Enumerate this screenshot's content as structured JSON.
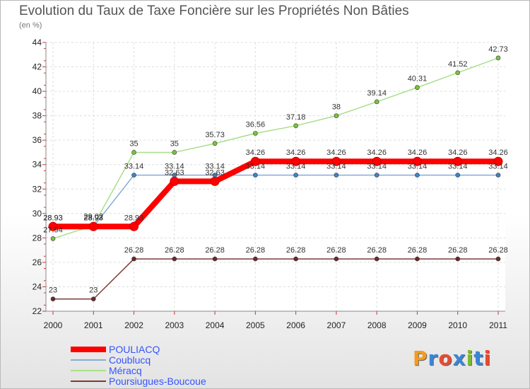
{
  "title": "Evolution du Taux de Taxe Foncière sur les Propriétés Non Bâties",
  "subtitle": "(en %)",
  "logo": "Proxiti",
  "colors": {
    "logo": [
      "#f39c1e",
      "#3a86d4",
      "#e84a2f",
      "#3a86d4",
      "#7dbb2e",
      "#3a86d4",
      "#e84a2f"
    ]
  },
  "chart_data": {
    "type": "line",
    "x": [
      "2000",
      "2001",
      "2002",
      "2003",
      "2004",
      "2005",
      "2006",
      "2007",
      "2008",
      "2009",
      "2010",
      "2011"
    ],
    "ylim": [
      22,
      44
    ],
    "yticks": [
      "22",
      "24",
      "26",
      "28",
      "30",
      "32",
      "34",
      "36",
      "38",
      "40",
      "42",
      "44"
    ],
    "grid": true,
    "legend": "bottom-left",
    "series": [
      {
        "name": "Poursiugues-Boucoue",
        "color": "#7a3b3b",
        "marker": "#6b2a2a",
        "values": [
          23,
          23,
          26.28,
          26.28,
          26.28,
          26.28,
          26.28,
          26.28,
          26.28,
          26.28,
          26.28,
          26.28
        ],
        "labels": [
          "23",
          "23",
          "26.28",
          "26.28",
          "26.28",
          "26.28",
          "26.28",
          "26.28",
          "26.28",
          "26.28",
          "26.28",
          "26.28"
        ]
      },
      {
        "name": "Méracq",
        "color": "#a9df8a",
        "marker": "#7cc43a",
        "values": [
          27.94,
          29.02,
          35,
          35,
          35.73,
          36.56,
          37.18,
          38,
          39.14,
          40.31,
          41.52,
          42.73
        ],
        "labels": [
          "27.94",
          "29.02",
          "35",
          "35",
          "35.73",
          "36.56",
          "37.18",
          "38",
          "39.14",
          "40.31",
          "41.52",
          "42.73"
        ]
      },
      {
        "name": "Coublucq",
        "color": "#86acd6",
        "marker": "#3b86c8",
        "values": [
          28.93,
          28.93,
          33.14,
          33.14,
          33.14,
          33.14,
          33.14,
          33.14,
          33.14,
          33.14,
          33.14,
          33.14
        ],
        "labels": [
          "28.93",
          "28.93",
          "33.14",
          "33.14",
          "33.14",
          "33.14",
          "33.14",
          "33.14",
          "33.14",
          "33.14",
          "33.14",
          "33.14"
        ]
      },
      {
        "name": "POULIACQ",
        "color": "#ff0000",
        "marker": "#ff0000",
        "values": [
          28.93,
          28.93,
          28.93,
          32.63,
          32.63,
          34.26,
          34.26,
          34.26,
          34.26,
          34.26,
          34.26,
          34.26
        ],
        "labels": [
          "28.93",
          "28.93",
          "28.93",
          "32.63",
          "32.63",
          "34.26",
          "34.26",
          "34.26",
          "34.26",
          "34.26",
          "34.26",
          "34.26"
        ]
      }
    ],
    "legend_items": [
      {
        "name": "POULIACQ",
        "color": "#ff0000",
        "text_color": "#3355ff"
      },
      {
        "name": "Coublucq",
        "color": "#86acd6",
        "text_color": "#3355ff"
      },
      {
        "name": "Méracq",
        "color": "#a9df8a",
        "text_color": "#3355ff"
      },
      {
        "name": "Poursiugues-Boucoue",
        "color": "#7a3b3b",
        "text_color": "#3355ff"
      }
    ]
  }
}
